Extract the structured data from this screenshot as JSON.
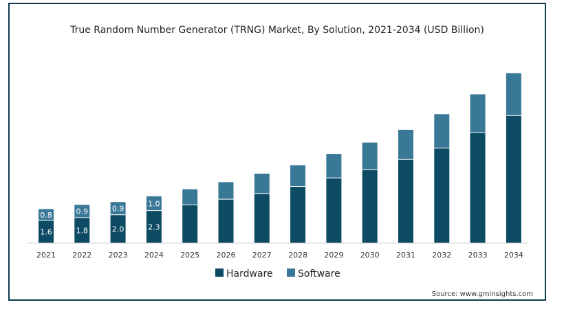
{
  "chart_data": {
    "type": "bar",
    "stacked": true,
    "title": "True Random Number Generator (TRNG) Market, By Solution, 2021-2034 (USD Billion)",
    "categories": [
      "2021",
      "2022",
      "2023",
      "2024",
      "2025",
      "2026",
      "2027",
      "2028",
      "2029",
      "2030",
      "2031",
      "2032",
      "2033",
      "2034"
    ],
    "series": [
      {
        "name": "Hardware",
        "color": "#0d4a63",
        "values": [
          1.6,
          1.8,
          2.0,
          2.3,
          2.7,
          3.1,
          3.5,
          4.0,
          4.6,
          5.2,
          5.9,
          6.7,
          7.8,
          9.0
        ],
        "labels": [
          "1.6",
          "1.8",
          "2.0",
          "2.3",
          "",
          "",
          "",
          "",
          "",
          "",
          "",
          "",
          "",
          ""
        ]
      },
      {
        "name": "Software",
        "color": "#3a7897",
        "values": [
          0.8,
          0.9,
          0.9,
          1.0,
          1.1,
          1.2,
          1.4,
          1.5,
          1.7,
          1.9,
          2.1,
          2.4,
          2.7,
          3.0
        ],
        "labels": [
          "0.8",
          "0.9",
          "0.9",
          "1.0",
          "",
          "",
          "",
          "",
          "",
          "",
          "",
          "",
          "",
          ""
        ]
      }
    ],
    "xlabel": "",
    "ylabel": "",
    "ylim": [
      0,
      12.8
    ],
    "grid": false,
    "legend": "bottom-center"
  },
  "source": "Source: www.gminsights.com"
}
